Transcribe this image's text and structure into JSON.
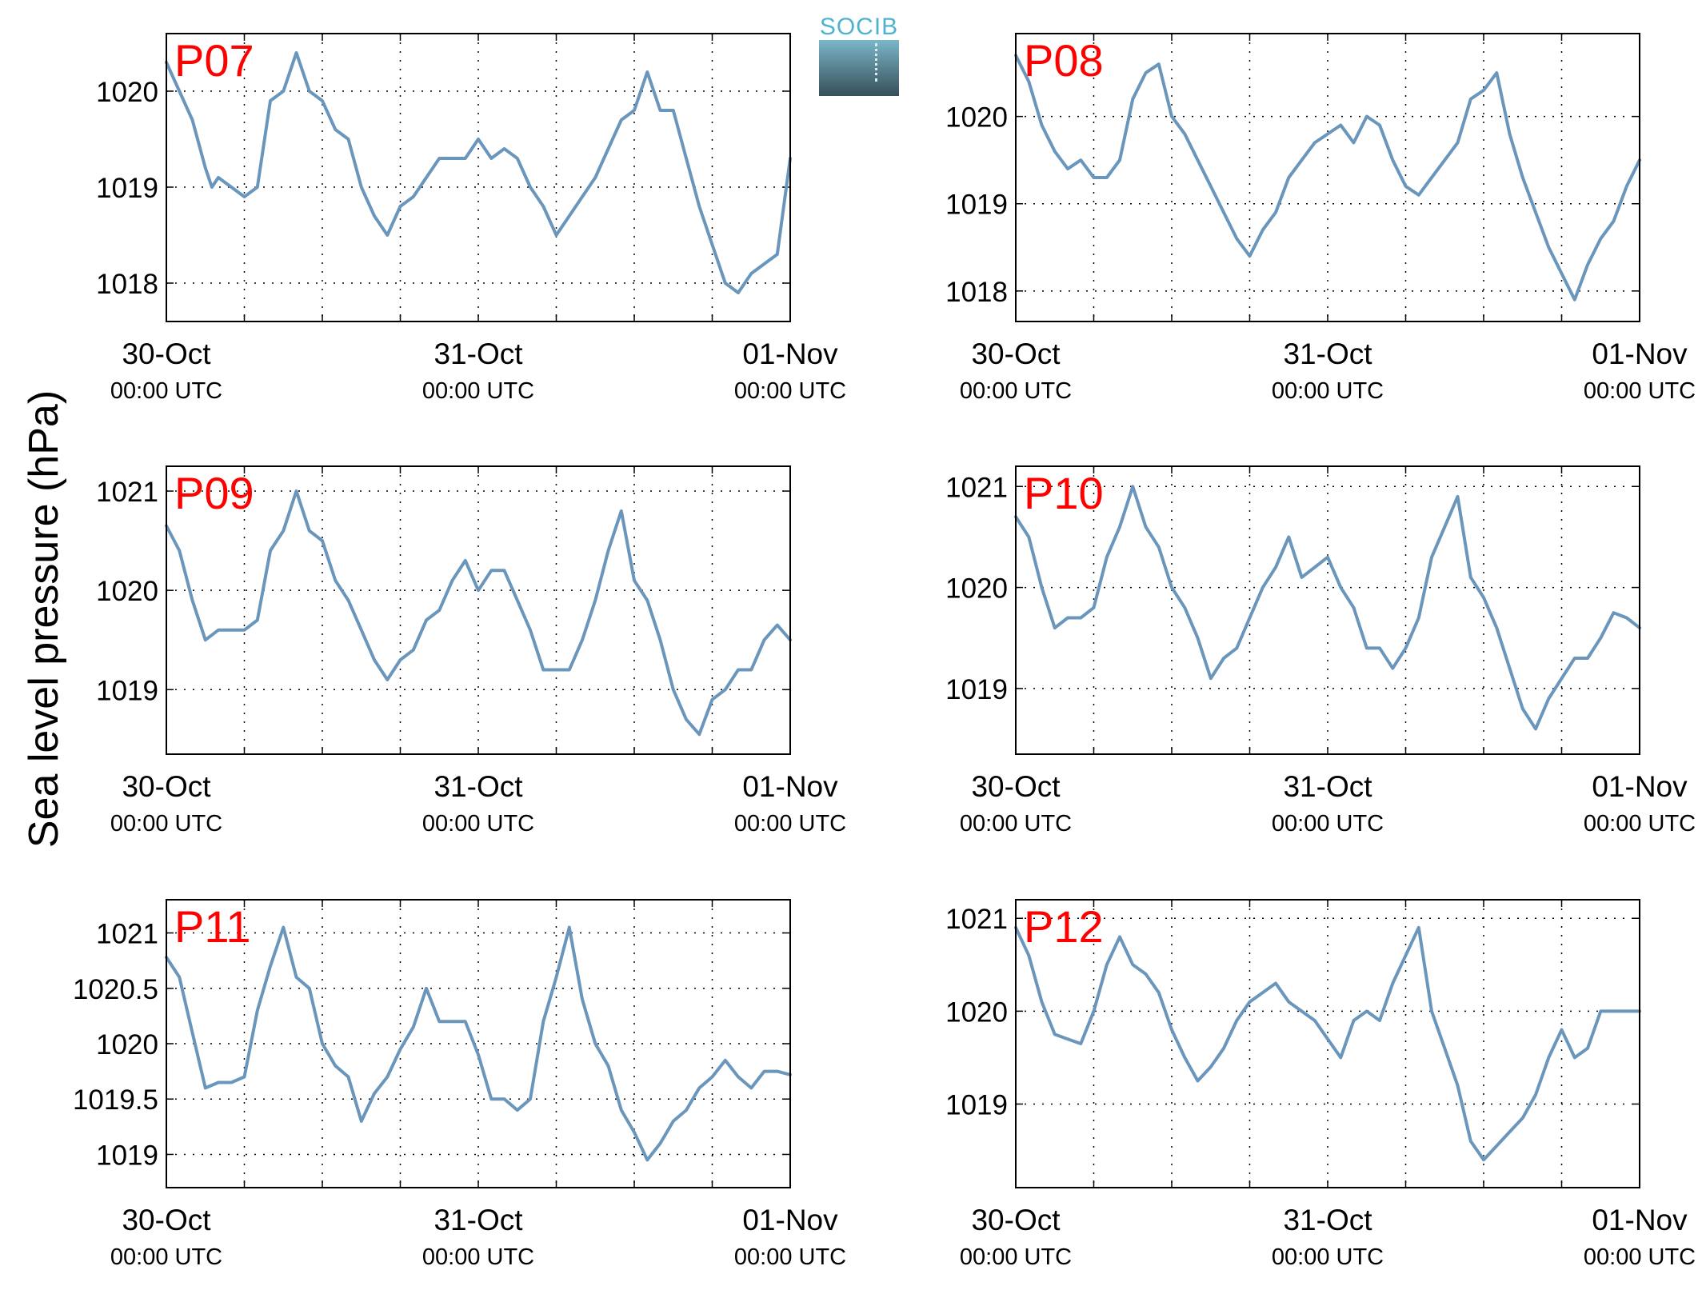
{
  "ylabel": "Sea level pressure (hPa)",
  "logo": {
    "text": "SOCIB",
    "accent_color": "#4fb3cf"
  },
  "colors": {
    "line": "#6a96bc",
    "station_label": "#ff0000",
    "grid": "#000000"
  },
  "chart_data": [
    {
      "type": "line",
      "title": "P07",
      "x_ticks": [
        {
          "date": "30-Oct",
          "time": "00:00 UTC"
        },
        {
          "date": "31-Oct",
          "time": "00:00 UTC"
        },
        {
          "date": "01-Nov",
          "time": "00:00 UTC"
        }
      ],
      "xlim": [
        0,
        48
      ],
      "ylim": [
        1017.6,
        1020.6
      ],
      "yticks": [
        1018,
        1019,
        1020
      ],
      "grid": true,
      "x": [
        0,
        1,
        2,
        3,
        3.5,
        4,
        5,
        6,
        7,
        8,
        9,
        10,
        11,
        12,
        13,
        14,
        15,
        16,
        17,
        18,
        19,
        20,
        21,
        22,
        23,
        24,
        25,
        26,
        27,
        28,
        29,
        30,
        31,
        32,
        33,
        34,
        35,
        36,
        37,
        38,
        39,
        40,
        41,
        42,
        43,
        44,
        45,
        46,
        47,
        48
      ],
      "y": [
        1020.3,
        1020.0,
        1019.7,
        1019.2,
        1019.0,
        1019.1,
        1019.0,
        1018.9,
        1019.0,
        1019.9,
        1020.0,
        1020.4,
        1020.0,
        1019.9,
        1019.6,
        1019.5,
        1019.0,
        1018.7,
        1018.5,
        1018.8,
        1018.9,
        1019.1,
        1019.3,
        1019.3,
        1019.3,
        1019.5,
        1019.3,
        1019.4,
        1019.3,
        1019.0,
        1018.8,
        1018.5,
        1018.7,
        1018.9,
        1019.1,
        1019.4,
        1019.7,
        1019.8,
        1020.2,
        1019.8,
        1019.8,
        1019.3,
        1018.8,
        1018.4,
        1018.0,
        1017.9,
        1018.1,
        1018.2,
        1018.3,
        1019.3
      ]
    },
    {
      "type": "line",
      "title": "P08",
      "x_ticks": [
        {
          "date": "30-Oct",
          "time": "00:00 UTC"
        },
        {
          "date": "31-Oct",
          "time": "00:00 UTC"
        },
        {
          "date": "01-Nov",
          "time": "00:00 UTC"
        }
      ],
      "xlim": [
        0,
        48
      ],
      "ylim": [
        1017.65,
        1020.95
      ],
      "yticks": [
        1018,
        1019,
        1020
      ],
      "grid": true,
      "x": [
        0,
        1,
        2,
        3,
        4,
        5,
        6,
        7,
        8,
        9,
        10,
        11,
        12,
        13,
        14,
        15,
        16,
        17,
        18,
        19,
        20,
        21,
        22,
        23,
        24,
        25,
        26,
        27,
        28,
        29,
        30,
        31,
        32,
        33,
        34,
        35,
        36,
        37,
        38,
        39,
        40,
        41,
        42,
        43,
        44,
        45,
        46,
        47,
        48
      ],
      "y": [
        1020.7,
        1020.4,
        1019.9,
        1019.6,
        1019.4,
        1019.5,
        1019.3,
        1019.3,
        1019.5,
        1020.2,
        1020.5,
        1020.6,
        1020.0,
        1019.8,
        1019.5,
        1019.2,
        1018.9,
        1018.6,
        1018.4,
        1018.7,
        1018.9,
        1019.3,
        1019.5,
        1019.7,
        1019.8,
        1019.9,
        1019.7,
        1020.0,
        1019.9,
        1019.5,
        1019.2,
        1019.1,
        1019.3,
        1019.5,
        1019.7,
        1020.2,
        1020.3,
        1020.5,
        1019.8,
        1019.3,
        1018.9,
        1018.5,
        1018.2,
        1017.9,
        1018.3,
        1018.6,
        1018.8,
        1019.2,
        1019.5
      ]
    },
    {
      "type": "line",
      "title": "P09",
      "x_ticks": [
        {
          "date": "30-Oct",
          "time": "00:00 UTC"
        },
        {
          "date": "31-Oct",
          "time": "00:00 UTC"
        },
        {
          "date": "01-Nov",
          "time": "00:00 UTC"
        }
      ],
      "xlim": [
        0,
        48
      ],
      "ylim": [
        1018.35,
        1021.25
      ],
      "yticks": [
        1019,
        1020,
        1021
      ],
      "grid": true,
      "x": [
        0,
        1,
        2,
        3,
        4,
        5,
        6,
        7,
        8,
        9,
        10,
        11,
        12,
        13,
        14,
        15,
        16,
        17,
        18,
        19,
        20,
        21,
        22,
        23,
        24,
        25,
        26,
        27,
        28,
        29,
        30,
        31,
        32,
        33,
        34,
        35,
        36,
        37,
        38,
        39,
        40,
        41,
        42,
        43,
        44,
        45,
        46,
        47,
        48
      ],
      "y": [
        1020.65,
        1020.4,
        1019.9,
        1019.5,
        1019.6,
        1019.6,
        1019.6,
        1019.7,
        1020.4,
        1020.6,
        1021.0,
        1020.6,
        1020.5,
        1020.1,
        1019.9,
        1019.6,
        1019.3,
        1019.1,
        1019.3,
        1019.4,
        1019.7,
        1019.8,
        1020.1,
        1020.3,
        1020.0,
        1020.2,
        1020.2,
        1019.9,
        1019.6,
        1019.2,
        1019.2,
        1019.2,
        1019.5,
        1019.9,
        1020.4,
        1020.8,
        1020.1,
        1019.9,
        1019.5,
        1019.0,
        1018.7,
        1018.55,
        1018.9,
        1019.0,
        1019.2,
        1019.2,
        1019.5,
        1019.65,
        1019.5
      ]
    },
    {
      "type": "line",
      "title": "P10",
      "x_ticks": [
        {
          "date": "30-Oct",
          "time": "00:00 UTC"
        },
        {
          "date": "31-Oct",
          "time": "00:00 UTC"
        },
        {
          "date": "01-Nov",
          "time": "00:00 UTC"
        }
      ],
      "xlim": [
        0,
        48
      ],
      "ylim": [
        1018.35,
        1021.2
      ],
      "yticks": [
        1019,
        1020,
        1021
      ],
      "grid": true,
      "x": [
        0,
        1,
        2,
        3,
        4,
        5,
        6,
        7,
        8,
        9,
        10,
        11,
        12,
        13,
        14,
        15,
        16,
        17,
        18,
        19,
        20,
        21,
        22,
        23,
        24,
        25,
        26,
        27,
        28,
        29,
        30,
        31,
        32,
        33,
        34,
        35,
        36,
        37,
        38,
        39,
        40,
        41,
        42,
        43,
        44,
        45,
        46,
        47,
        48
      ],
      "y": [
        1020.7,
        1020.5,
        1020.0,
        1019.6,
        1019.7,
        1019.7,
        1019.8,
        1020.3,
        1020.6,
        1021.0,
        1020.6,
        1020.4,
        1020.0,
        1019.8,
        1019.5,
        1019.1,
        1019.3,
        1019.4,
        1019.7,
        1020.0,
        1020.2,
        1020.5,
        1020.1,
        1020.2,
        1020.3,
        1020.0,
        1019.8,
        1019.4,
        1019.4,
        1019.2,
        1019.4,
        1019.7,
        1020.3,
        1020.6,
        1020.9,
        1020.1,
        1019.9,
        1019.6,
        1019.2,
        1018.8,
        1018.6,
        1018.9,
        1019.1,
        1019.3,
        1019.3,
        1019.5,
        1019.75,
        1019.7,
        1019.6
      ]
    },
    {
      "type": "line",
      "title": "P11",
      "x_ticks": [
        {
          "date": "30-Oct",
          "time": "00:00 UTC"
        },
        {
          "date": "31-Oct",
          "time": "00:00 UTC"
        },
        {
          "date": "01-Nov",
          "time": "00:00 UTC"
        }
      ],
      "xlim": [
        0,
        48
      ],
      "ylim": [
        1018.7,
        1021.3
      ],
      "yticks": [
        1019,
        1019.5,
        1020,
        1020.5,
        1021
      ],
      "grid": true,
      "x": [
        0,
        1,
        2,
        3,
        4,
        5,
        6,
        7,
        8,
        9,
        10,
        11,
        12,
        13,
        14,
        15,
        16,
        17,
        18,
        19,
        20,
        21,
        22,
        23,
        24,
        25,
        26,
        27,
        28,
        29,
        30,
        31,
        32,
        33,
        34,
        35,
        36,
        37,
        38,
        39,
        40,
        41,
        42,
        43,
        44,
        45,
        46,
        47,
        48
      ],
      "y": [
        1020.78,
        1020.6,
        1020.1,
        1019.6,
        1019.65,
        1019.65,
        1019.7,
        1020.3,
        1020.7,
        1021.05,
        1020.6,
        1020.5,
        1020.0,
        1019.8,
        1019.7,
        1019.3,
        1019.55,
        1019.7,
        1019.95,
        1020.15,
        1020.5,
        1020.2,
        1020.2,
        1020.2,
        1019.9,
        1019.5,
        1019.5,
        1019.4,
        1019.5,
        1020.2,
        1020.6,
        1021.05,
        1020.4,
        1020.0,
        1019.8,
        1019.4,
        1019.2,
        1018.95,
        1019.1,
        1019.3,
        1019.4,
        1019.6,
        1019.7,
        1019.85,
        1019.7,
        1019.6,
        1019.75,
        1019.75,
        1019.72
      ]
    },
    {
      "type": "line",
      "title": "P12",
      "x_ticks": [
        {
          "date": "30-Oct",
          "time": "00:00 UTC"
        },
        {
          "date": "31-Oct",
          "time": "00:00 UTC"
        },
        {
          "date": "01-Nov",
          "time": "00:00 UTC"
        }
      ],
      "xlim": [
        0,
        48
      ],
      "ylim": [
        1018.1,
        1021.2
      ],
      "yticks": [
        1019,
        1020,
        1021
      ],
      "grid": true,
      "x": [
        0,
        1,
        2,
        3,
        4,
        5,
        6,
        7,
        8,
        9,
        10,
        11,
        12,
        13,
        14,
        15,
        16,
        17,
        18,
        19,
        20,
        21,
        22,
        23,
        24,
        25,
        26,
        27,
        28,
        29,
        30,
        31,
        32,
        33,
        34,
        35,
        36,
        37,
        38,
        39,
        40,
        41,
        42,
        43,
        44,
        45,
        46,
        47,
        48
      ],
      "y": [
        1020.9,
        1020.6,
        1020.1,
        1019.75,
        1019.7,
        1019.65,
        1020.0,
        1020.5,
        1020.8,
        1020.5,
        1020.4,
        1020.2,
        1019.8,
        1019.5,
        1019.25,
        1019.4,
        1019.6,
        1019.9,
        1020.1,
        1020.2,
        1020.3,
        1020.1,
        1020.0,
        1019.9,
        1019.7,
        1019.5,
        1019.9,
        1020.0,
        1019.9,
        1020.3,
        1020.6,
        1020.9,
        1020.0,
        1019.6,
        1019.2,
        1018.6,
        1018.4,
        1018.55,
        1018.7,
        1018.85,
        1019.1,
        1019.5,
        1019.8,
        1019.5,
        1019.6,
        1020.0,
        1020.0,
        1020.0,
        1020.0
      ]
    }
  ]
}
